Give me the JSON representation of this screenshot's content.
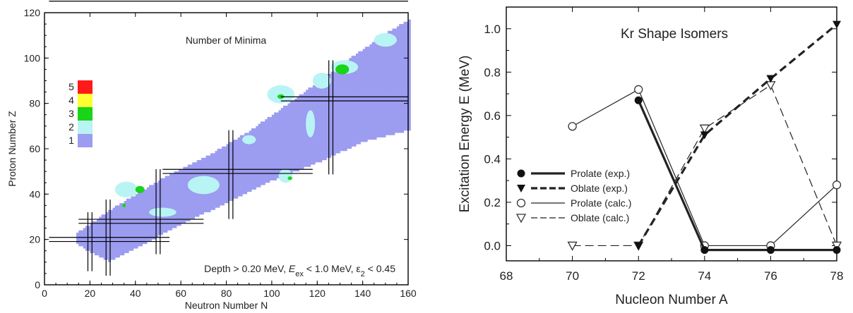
{
  "chart_data": [
    {
      "type": "heatmap",
      "title": "Number of Minima",
      "xlabel": "Neutron Number N",
      "ylabel": "Proton Number Z",
      "xlim": [
        0,
        160
      ],
      "ylim": [
        0,
        120
      ],
      "xticks": [
        "0",
        "20",
        "40",
        "60",
        "80",
        "100",
        "120",
        "140",
        "160"
      ],
      "yticks": [
        "0",
        "20",
        "40",
        "60",
        "80",
        "100",
        "120"
      ],
      "annotation": "Depth > 0.20 MeV, Eex < 1.0 MeV, ε2 < 0.45",
      "annotation_parts": [
        "Depth > 0.20 MeV, ",
        "E",
        "ex",
        " < 1.0 MeV, ε",
        "2",
        " < 0.45"
      ],
      "legend": {
        "position": "left",
        "entries": [
          {
            "label": "5",
            "color": "#ff1a1a"
          },
          {
            "label": "4",
            "color": "#ffff33"
          },
          {
            "label": "3",
            "color": "#19d419"
          },
          {
            "label": "2",
            "color": "#b9f4f4"
          },
          {
            "label": "1",
            "color": "#9c9cf0"
          }
        ]
      },
      "magic_numbers": [
        20,
        28,
        50,
        82,
        126
      ],
      "band": {
        "lower": [
          [
            14,
            18
          ],
          [
            20,
            14
          ],
          [
            28,
            10
          ],
          [
            40,
            16
          ],
          [
            60,
            27
          ],
          [
            80,
            36
          ],
          [
            100,
            46
          ],
          [
            120,
            54
          ],
          [
            140,
            63
          ],
          [
            160,
            68
          ]
        ],
        "upper": [
          [
            14,
            22
          ],
          [
            20,
            26
          ],
          [
            30,
            33
          ],
          [
            50,
            45
          ],
          [
            70,
            55
          ],
          [
            90,
            67
          ],
          [
            110,
            81
          ],
          [
            130,
            96
          ],
          [
            150,
            110
          ],
          [
            160,
            116
          ]
        ]
      },
      "regions_count2": [
        {
          "n": 36,
          "z": 42,
          "rn": 5,
          "rz": 3.5
        },
        {
          "n": 70,
          "z": 44,
          "rn": 7,
          "rz": 4
        },
        {
          "n": 104,
          "z": 84,
          "rn": 6,
          "rz": 4
        },
        {
          "n": 122,
          "z": 90,
          "rn": 4,
          "rz": 3.5
        },
        {
          "n": 132,
          "z": 96,
          "rn": 6,
          "rz": 3
        },
        {
          "n": 117,
          "z": 71,
          "rn": 2,
          "rz": 6
        },
        {
          "n": 106,
          "z": 48,
          "rn": 3,
          "rz": 3
        },
        {
          "n": 90,
          "z": 64,
          "rn": 3,
          "rz": 2
        },
        {
          "n": 150,
          "z": 108,
          "rn": 5,
          "rz": 3
        },
        {
          "n": 52,
          "z": 32,
          "rn": 6,
          "rz": 2
        }
      ],
      "regions_count3": [
        {
          "n": 42,
          "z": 42,
          "rn": 2,
          "rz": 1.6
        },
        {
          "n": 131,
          "z": 95,
          "rn": 3,
          "rz": 2.2
        },
        {
          "n": 104,
          "z": 83,
          "rn": 1.5,
          "rz": 1
        },
        {
          "n": 108,
          "z": 47,
          "rn": 1,
          "rz": 0.8
        },
        {
          "n": 35,
          "z": 35,
          "rn": 0.8,
          "rz": 0.8
        }
      ]
    },
    {
      "type": "line",
      "title": "Kr Shape Isomers",
      "xlabel": "Nucleon Number A",
      "ylabel": "Excitation Energy E (MeV)",
      "xlim": [
        68,
        78
      ],
      "ylim": [
        -0.07,
        1.1
      ],
      "xticks": [
        "68",
        "70",
        "72",
        "74",
        "76",
        "78"
      ],
      "yticks": [
        "0.0",
        "0.2",
        "0.4",
        "0.6",
        "0.8",
        "1.0"
      ],
      "legend_position": "left",
      "series": [
        {
          "name": "Prolate (exp.)",
          "style": "thick-solid",
          "marker": "filled-circle",
          "x": [
            72,
            74,
            76,
            78
          ],
          "y": [
            0.67,
            -0.02,
            -0.02,
            -0.02
          ]
        },
        {
          "name": "Oblate (exp.)",
          "style": "thick-dashed",
          "marker": "filled-triangle",
          "x": [
            72,
            74,
            76,
            78
          ],
          "y": [
            0.0,
            0.51,
            0.77,
            1.02
          ]
        },
        {
          "name": "Prolate (calc.)",
          "style": "thin-solid",
          "marker": "open-circle",
          "x": [
            70,
            72,
            74,
            76,
            78
          ],
          "y": [
            0.55,
            0.72,
            0.0,
            0.0,
            0.28
          ]
        },
        {
          "name": "Oblate (calc.)",
          "style": "thin-dashed",
          "marker": "open-triangle",
          "x": [
            70,
            72,
            74,
            76,
            78
          ],
          "y": [
            0.0,
            0.0,
            0.54,
            0.74,
            0.0
          ]
        }
      ]
    }
  ]
}
